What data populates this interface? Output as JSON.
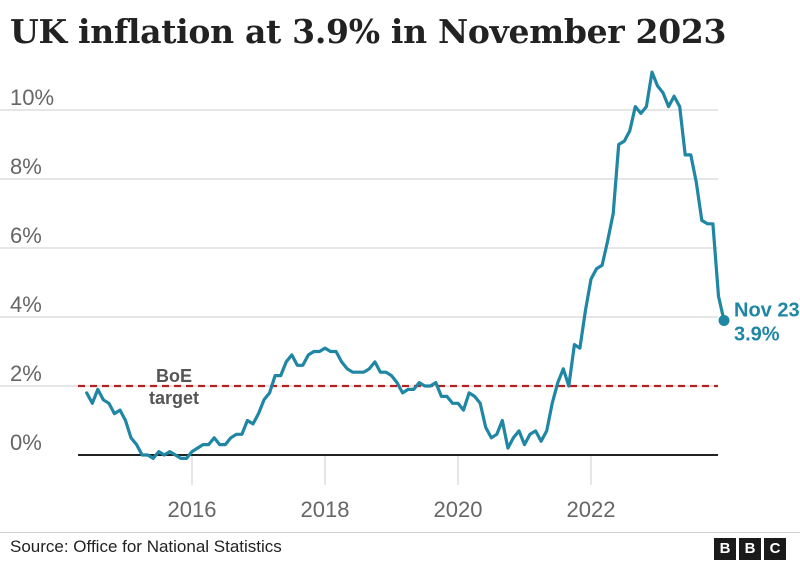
{
  "title": "UK inflation at 3.9% in November 2023",
  "source": "Source: Office for National Statistics",
  "logo": [
    "B",
    "B",
    "C"
  ],
  "colors": {
    "line": "#1f86a3",
    "target": "#b22222",
    "zero": "#222222",
    "grid": "#cccccc"
  },
  "chart_data": {
    "type": "line",
    "title": "UK inflation at 3.9% in November 2023",
    "xlabel": "",
    "ylabel": "",
    "ylim": [
      0,
      11
    ],
    "y_ticks": [
      0,
      2,
      4,
      6,
      8,
      10
    ],
    "y_tick_labels": [
      "0%",
      "2%",
      "4%",
      "6%",
      "8%",
      "10%"
    ],
    "x_ticks": [
      2016,
      2018,
      2020,
      2022
    ],
    "x_tick_labels": [
      "2016",
      "2018",
      "2020",
      "2022"
    ],
    "grid": "horizontal",
    "x_start": "2014-06",
    "x_end": "2023-11",
    "values": [
      1.8,
      1.5,
      1.9,
      1.6,
      1.5,
      1.2,
      1.3,
      1.0,
      0.5,
      0.3,
      0.0,
      0.0,
      -0.1,
      0.1,
      0.0,
      0.1,
      0.0,
      -0.1,
      -0.1,
      0.1,
      0.2,
      0.3,
      0.3,
      0.5,
      0.3,
      0.3,
      0.5,
      0.6,
      0.6,
      1.0,
      0.9,
      1.2,
      1.6,
      1.8,
      2.3,
      2.3,
      2.7,
      2.9,
      2.6,
      2.6,
      2.9,
      3.0,
      3.0,
      3.1,
      3.0,
      3.0,
      2.7,
      2.5,
      2.4,
      2.4,
      2.4,
      2.5,
      2.7,
      2.4,
      2.4,
      2.3,
      2.1,
      1.8,
      1.9,
      1.9,
      2.1,
      2.0,
      2.0,
      2.1,
      1.7,
      1.7,
      1.5,
      1.5,
      1.3,
      1.8,
      1.7,
      1.5,
      0.8,
      0.5,
      0.6,
      1.0,
      0.2,
      0.5,
      0.7,
      0.3,
      0.6,
      0.7,
      0.4,
      0.7,
      1.5,
      2.1,
      2.5,
      2.0,
      3.2,
      3.1,
      4.2,
      5.1,
      5.4,
      5.5,
      6.2,
      7.0,
      9.0,
      9.1,
      9.4,
      10.1,
      9.9,
      10.1,
      11.1,
      10.7,
      10.5,
      10.1,
      10.4,
      10.1,
      8.7,
      8.7,
      7.9,
      6.8,
      6.7,
      6.7,
      4.6,
      3.9
    ],
    "reference_lines": [
      {
        "label_line1": "BoE",
        "label_line2": "target",
        "value": 2
      }
    ],
    "end_label": {
      "date": "Nov 23",
      "value": "3.9%"
    }
  }
}
